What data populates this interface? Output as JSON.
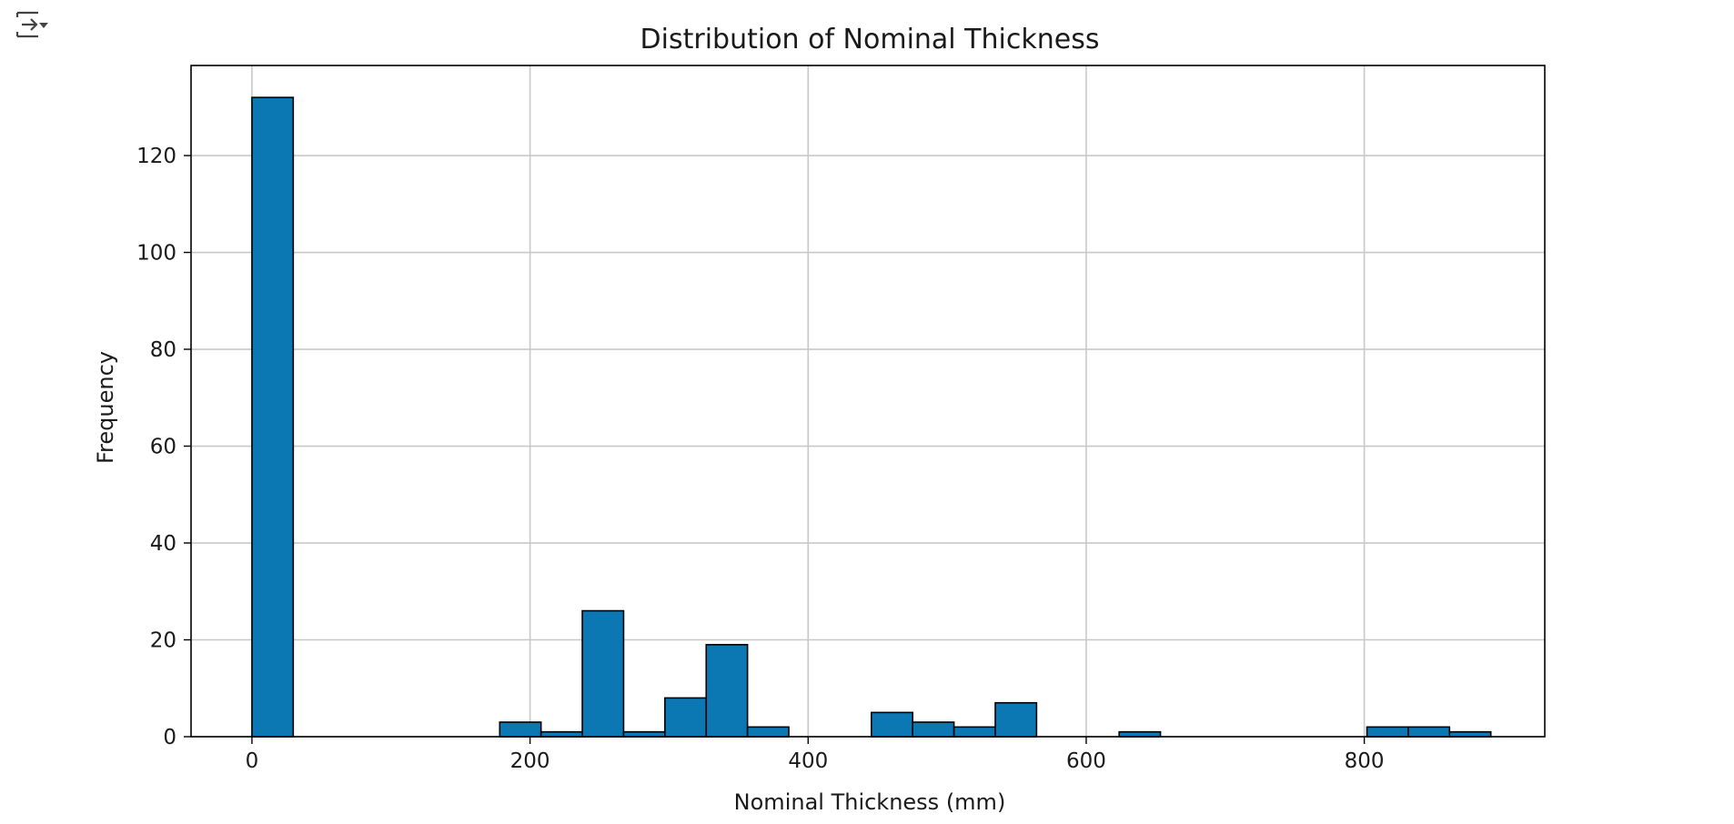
{
  "output_icon": "output-toggle-icon",
  "chart_data": {
    "type": "bar",
    "title": "Distribution of Nominal Thickness",
    "xlabel": "Nominal Thickness (mm)",
    "ylabel": "Frequency",
    "bin_width": 29.7,
    "bins": [
      {
        "x0": 0,
        "count": 132
      },
      {
        "x0": 178.2,
        "count": 3
      },
      {
        "x0": 207.9,
        "count": 1
      },
      {
        "x0": 237.6,
        "count": 26
      },
      {
        "x0": 267.3,
        "count": 1
      },
      {
        "x0": 297.0,
        "count": 8
      },
      {
        "x0": 326.7,
        "count": 19
      },
      {
        "x0": 356.4,
        "count": 2
      },
      {
        "x0": 445.5,
        "count": 5
      },
      {
        "x0": 475.2,
        "count": 3
      },
      {
        "x0": 504.9,
        "count": 2
      },
      {
        "x0": 534.6,
        "count": 7
      },
      {
        "x0": 623.7,
        "count": 1
      },
      {
        "x0": 801.9,
        "count": 2
      },
      {
        "x0": 831.6,
        "count": 2
      },
      {
        "x0": 861.3,
        "count": 1
      }
    ],
    "xlim": [
      -43.8,
      929.8
    ],
    "ylim": [
      0,
      138.6
    ],
    "xticks": [
      0,
      200,
      400,
      600,
      800
    ],
    "yticks": [
      0,
      20,
      40,
      60,
      80,
      100,
      120
    ],
    "grid": true,
    "colors": {
      "bar_fill": "#0b78b4",
      "bar_edge": "#000000",
      "grid": "#c8c8c8",
      "axes": "#000000",
      "text": "#1a1a1a"
    }
  }
}
